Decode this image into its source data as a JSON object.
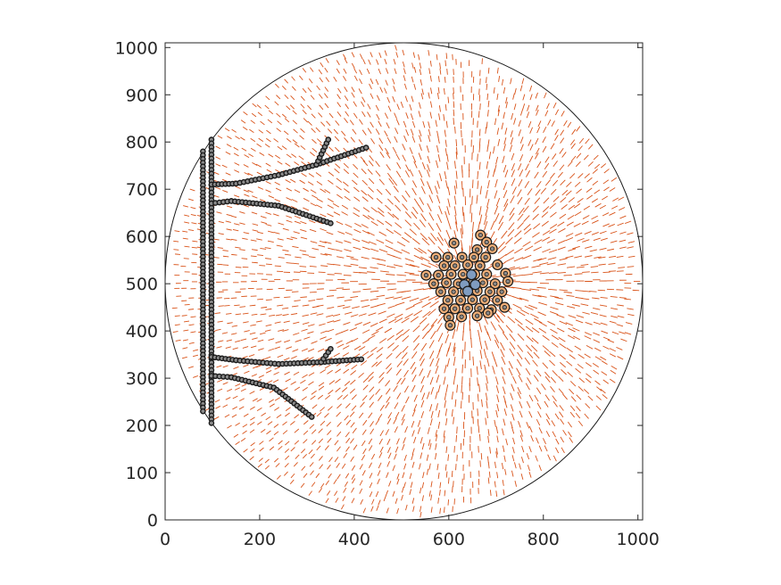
{
  "chart_data": {
    "type": "scatter",
    "title": "",
    "xlabel": "",
    "ylabel": "",
    "xlim": [
      0,
      1010
    ],
    "ylim": [
      0,
      1010
    ],
    "grid": false,
    "x_ticks": [
      0,
      200,
      400,
      600,
      800,
      1000
    ],
    "y_ticks": [
      0,
      100,
      200,
      300,
      400,
      500,
      600,
      700,
      800,
      900,
      1000
    ],
    "domain": {
      "type": "circle",
      "center": [
        505,
        505
      ],
      "radius": 505
    },
    "vector_field": {
      "description_color": "#d95319",
      "sink": [
        640,
        505
      ],
      "grid_step": 18
    },
    "tree_structure": {
      "trunk_left": [
        [
          80,
          780
        ],
        [
          80,
          230
        ]
      ],
      "trunk_right": [
        [
          98,
          805
        ],
        [
          98,
          205
        ]
      ],
      "branches": [
        [
          [
            98,
            710
          ],
          [
            150,
            712
          ],
          [
            240,
            730
          ],
          [
            320,
            752
          ],
          [
            425,
            788
          ]
        ],
        [
          [
            320,
            752
          ],
          [
            345,
            805
          ]
        ],
        [
          [
            98,
            670
          ],
          [
            140,
            675
          ],
          [
            240,
            665
          ],
          [
            350,
            628
          ]
        ],
        [
          [
            98,
            345
          ],
          [
            150,
            338
          ],
          [
            240,
            330
          ],
          [
            330,
            334
          ],
          [
            415,
            340
          ]
        ],
        [
          [
            330,
            334
          ],
          [
            350,
            362
          ]
        ],
        [
          [
            98,
            305
          ],
          [
            140,
            302
          ],
          [
            230,
            280
          ],
          [
            310,
            218
          ]
        ]
      ]
    },
    "cluster_cells": [
      [
        667,
        603
      ],
      [
        611,
        586
      ],
      [
        680,
        588
      ],
      [
        660,
        572
      ],
      [
        692,
        574
      ],
      [
        573,
        556
      ],
      [
        598,
        556
      ],
      [
        628,
        556
      ],
      [
        653,
        556
      ],
      [
        678,
        556
      ],
      [
        590,
        538
      ],
      [
        613,
        538
      ],
      [
        640,
        540
      ],
      [
        666,
        538
      ],
      [
        703,
        540
      ],
      [
        552,
        518
      ],
      [
        578,
        518
      ],
      [
        605,
        520
      ],
      [
        630,
        520
      ],
      [
        655,
        520
      ],
      [
        680,
        520
      ],
      [
        720,
        522
      ],
      [
        568,
        500
      ],
      [
        595,
        502
      ],
      [
        620,
        500
      ],
      [
        647,
        505
      ],
      [
        672,
        502
      ],
      [
        698,
        500
      ],
      [
        725,
        505
      ],
      [
        583,
        483
      ],
      [
        610,
        483
      ],
      [
        635,
        484
      ],
      [
        660,
        485
      ],
      [
        687,
        483
      ],
      [
        712,
        483
      ],
      [
        598,
        465
      ],
      [
        625,
        465
      ],
      [
        650,
        466
      ],
      [
        676,
        466
      ],
      [
        703,
        465
      ],
      [
        590,
        447
      ],
      [
        613,
        447
      ],
      [
        640,
        448
      ],
      [
        665,
        448
      ],
      [
        690,
        445
      ],
      [
        718,
        450
      ],
      [
        600,
        429
      ],
      [
        627,
        430
      ],
      [
        660,
        432
      ],
      [
        683,
        438
      ],
      [
        603,
        412
      ]
    ],
    "cluster_core_cells": [
      [
        648,
        519
      ],
      [
        633,
        498
      ],
      [
        656,
        498
      ],
      [
        640,
        484
      ]
    ]
  },
  "colors": {
    "background": "#ffffff",
    "axes": "#262626",
    "arrows": "#d95319",
    "cell_fill": "#f0b07a",
    "cell_core_fill": "#7f9cc0",
    "cell_edge": "#1a1a1a",
    "tree_marker": "#1a1a1a"
  }
}
